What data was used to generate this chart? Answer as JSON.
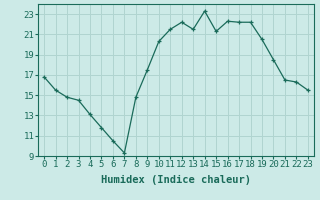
{
  "x": [
    0,
    1,
    2,
    3,
    4,
    5,
    6,
    7,
    8,
    9,
    10,
    11,
    12,
    13,
    14,
    15,
    16,
    17,
    18,
    19,
    20,
    21,
    22,
    23
  ],
  "y": [
    16.8,
    15.5,
    14.8,
    14.5,
    13.1,
    11.8,
    10.5,
    9.3,
    14.8,
    17.5,
    20.3,
    21.5,
    22.2,
    21.5,
    23.3,
    21.3,
    22.3,
    22.2,
    22.2,
    20.5,
    18.5,
    16.5,
    16.3,
    15.5
  ],
  "line_color": "#1a6b5a",
  "marker": "+",
  "bg_color": "#cceae7",
  "grid_color": "#b0d4d0",
  "xlabel": "Humidex (Indice chaleur)",
  "xlabel_fontsize": 7.5,
  "tick_fontsize": 6.5,
  "xlim": [
    -0.5,
    23.5
  ],
  "ylim": [
    9,
    24
  ],
  "yticks": [
    9,
    11,
    13,
    15,
    17,
    19,
    21,
    23
  ],
  "xticks": [
    0,
    1,
    2,
    3,
    4,
    5,
    6,
    7,
    8,
    9,
    10,
    11,
    12,
    13,
    14,
    15,
    16,
    17,
    18,
    19,
    20,
    21,
    22,
    23
  ]
}
